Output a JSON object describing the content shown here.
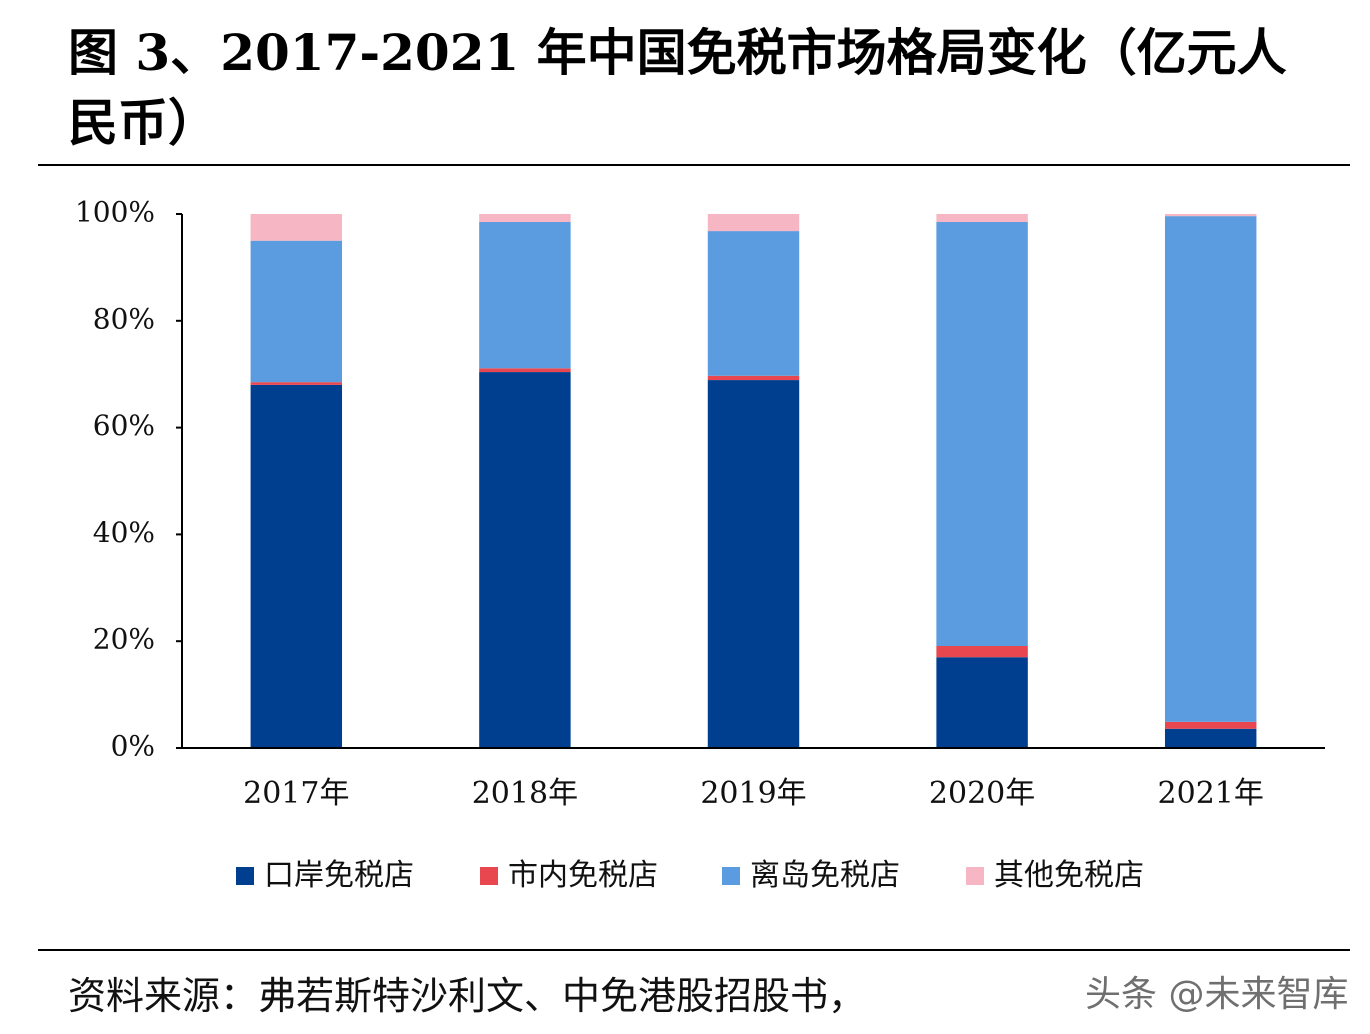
{
  "chart_data": {
    "type": "stacked_bar",
    "title": "图 3、2017-2021 年中国免税市场格局变化（亿元人民币）",
    "categories": [
      "2017年",
      "2018年",
      "2019年",
      "2020年",
      "2021年"
    ],
    "series": [
      {
        "name": "口岸免税店",
        "color": "#003f8f",
        "values": [
          68.0,
          70.4,
          68.9,
          17.0,
          3.6
        ]
      },
      {
        "name": "市内免税店",
        "color": "#e8474f",
        "values": [
          0.5,
          0.7,
          0.8,
          2.1,
          1.3
        ]
      },
      {
        "name": "离岛免税店",
        "color": "#5b9be0",
        "values": [
          26.5,
          27.4,
          27.1,
          79.4,
          94.7
        ]
      },
      {
        "name": "其他免税店",
        "color": "#f7b6c4",
        "values": [
          5.0,
          1.5,
          3.2,
          1.5,
          0.4
        ]
      }
    ],
    "ylim": [
      0,
      100
    ],
    "yticks": [
      {
        "value": 0,
        "label": "0%"
      },
      {
        "value": 20,
        "label": "20%"
      },
      {
        "value": 40,
        "label": "40%"
      },
      {
        "value": 60,
        "label": "60%"
      },
      {
        "value": 80,
        "label": "80%"
      },
      {
        "value": 100,
        "label": "100%"
      }
    ],
    "source": "资料来源：弗若斯特沙利文、中免港股招股书，",
    "watermark": "头条 @未来智库"
  }
}
